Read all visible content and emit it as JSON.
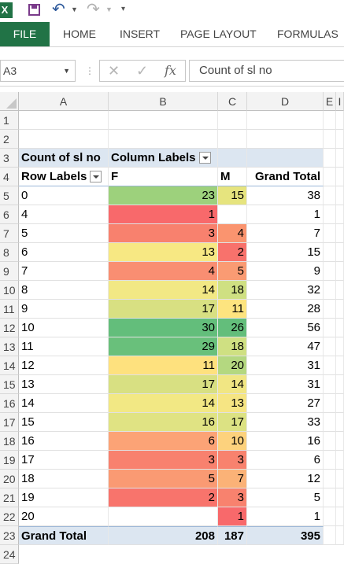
{
  "qat": {
    "app_icon": "X",
    "save_icon": "save-icon",
    "undo_icon": "undo-icon",
    "redo_icon": "redo-icon"
  },
  "tabs": [
    "FILE",
    "HOME",
    "INSERT",
    "PAGE LAYOUT",
    "FORMULAS"
  ],
  "formula_bar": {
    "name_box": "A3",
    "fx": "fx",
    "formula": "Count of sl no"
  },
  "columns": [
    "A",
    "B",
    "C",
    "D",
    "E",
    "I"
  ],
  "pivot": {
    "title": "Count of sl no",
    "column_labels": "Column Labels",
    "row_labels": "Row Labels",
    "col_f": "F",
    "col_m": "M",
    "grand_total_label": "Grand Total",
    "rows": [
      {
        "label": "0",
        "f": "23",
        "m": "15",
        "total": "38",
        "f_color": "#9dd17c",
        "m_color": "#e6e47e"
      },
      {
        "label": "4",
        "f": "1",
        "m": "",
        "total": "1",
        "f_color": "#f8696b",
        "m_color": "#ffffff"
      },
      {
        "label": "5",
        "f": "3",
        "m": "4",
        "total": "7",
        "f_color": "#f8816e",
        "m_color": "#fa946f"
      },
      {
        "label": "6",
        "f": "13",
        "m": "2",
        "total": "15",
        "f_color": "#f7e883",
        "m_color": "#f8726c"
      },
      {
        "label": "7",
        "f": "4",
        "m": "5",
        "total": "9",
        "f_color": "#f98e72",
        "m_color": "#fa9b73"
      },
      {
        "label": "8",
        "f": "14",
        "m": "18",
        "total": "32",
        "f_color": "#f2e884",
        "m_color": "#cfe082"
      },
      {
        "label": "9",
        "f": "17",
        "m": "11",
        "total": "28",
        "f_color": "#d8e082",
        "m_color": "#fde47f"
      },
      {
        "label": "10",
        "f": "30",
        "m": "26",
        "total": "56",
        "f_color": "#63be7b",
        "m_color": "#63be7b"
      },
      {
        "label": "11",
        "f": "29",
        "m": "18",
        "total": "47",
        "f_color": "#69c07b",
        "m_color": "#cfe082"
      },
      {
        "label": "12",
        "f": "11",
        "m": "20",
        "total": "31",
        "f_color": "#fee17e",
        "m_color": "#b4d880"
      },
      {
        "label": "13",
        "f": "17",
        "m": "14",
        "total": "31",
        "f_color": "#d8e082",
        "m_color": "#f1e683"
      },
      {
        "label": "14",
        "f": "14",
        "m": "13",
        "total": "27",
        "f_color": "#f2e884",
        "m_color": "#f6e583"
      },
      {
        "label": "15",
        "f": "16",
        "m": "17",
        "total": "33",
        "f_color": "#e0e383",
        "m_color": "#dce283"
      },
      {
        "label": "16",
        "f": "6",
        "m": "10",
        "total": "16",
        "f_color": "#fca376",
        "m_color": "#fdd27d"
      },
      {
        "label": "17",
        "f": "3",
        "m": "3",
        "total": "6",
        "f_color": "#f8816e",
        "m_color": "#f8826e"
      },
      {
        "label": "18",
        "f": "5",
        "m": "7",
        "total": "12",
        "f_color": "#fa9a73",
        "m_color": "#fbb277"
      },
      {
        "label": "19",
        "f": "2",
        "m": "3",
        "total": "5",
        "f_color": "#f8746c",
        "m_color": "#f8826e"
      },
      {
        "label": "20",
        "f": "",
        "m": "1",
        "total": "1",
        "f_color": "#ffffff",
        "m_color": "#f8696b"
      }
    ],
    "grand_total": {
      "f": "208",
      "m": "187",
      "total": "395"
    }
  }
}
